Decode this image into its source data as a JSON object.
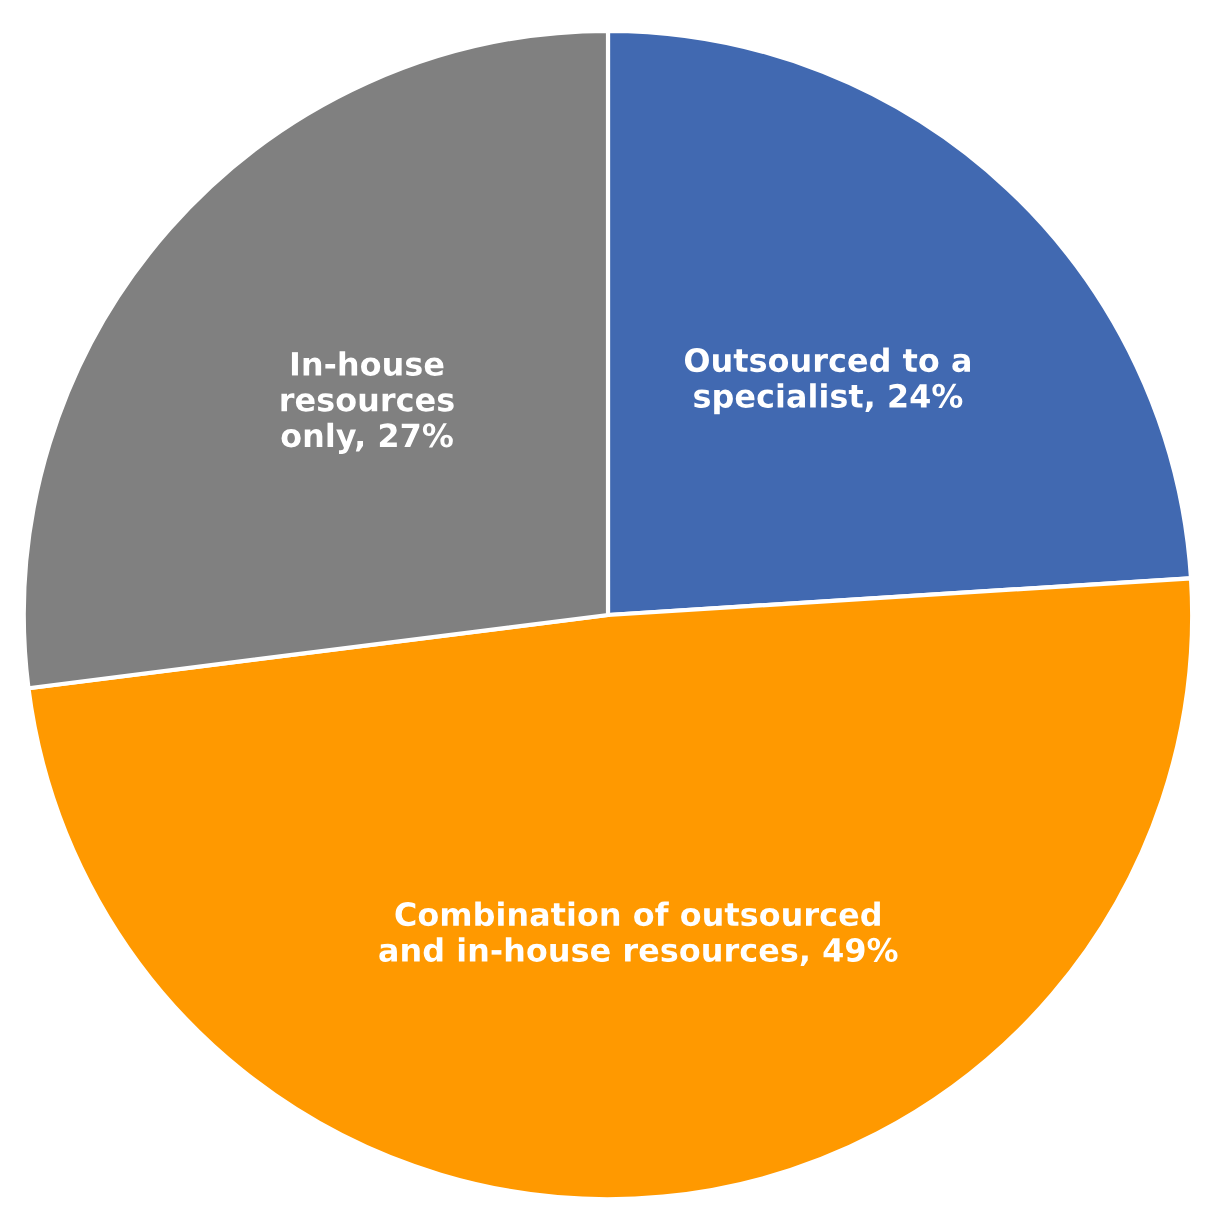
{
  "chart_data": {
    "type": "pie",
    "categories": [
      "Outsourced to a specialist",
      "Combination of outsourced and in-house resources",
      "In-house resources only"
    ],
    "value_labels": [
      "24%",
      "49%",
      "27%"
    ],
    "values": [
      24,
      49,
      27
    ],
    "colors": [
      "#4169b1",
      "#ff9900",
      "#808080"
    ],
    "legend": false
  }
}
